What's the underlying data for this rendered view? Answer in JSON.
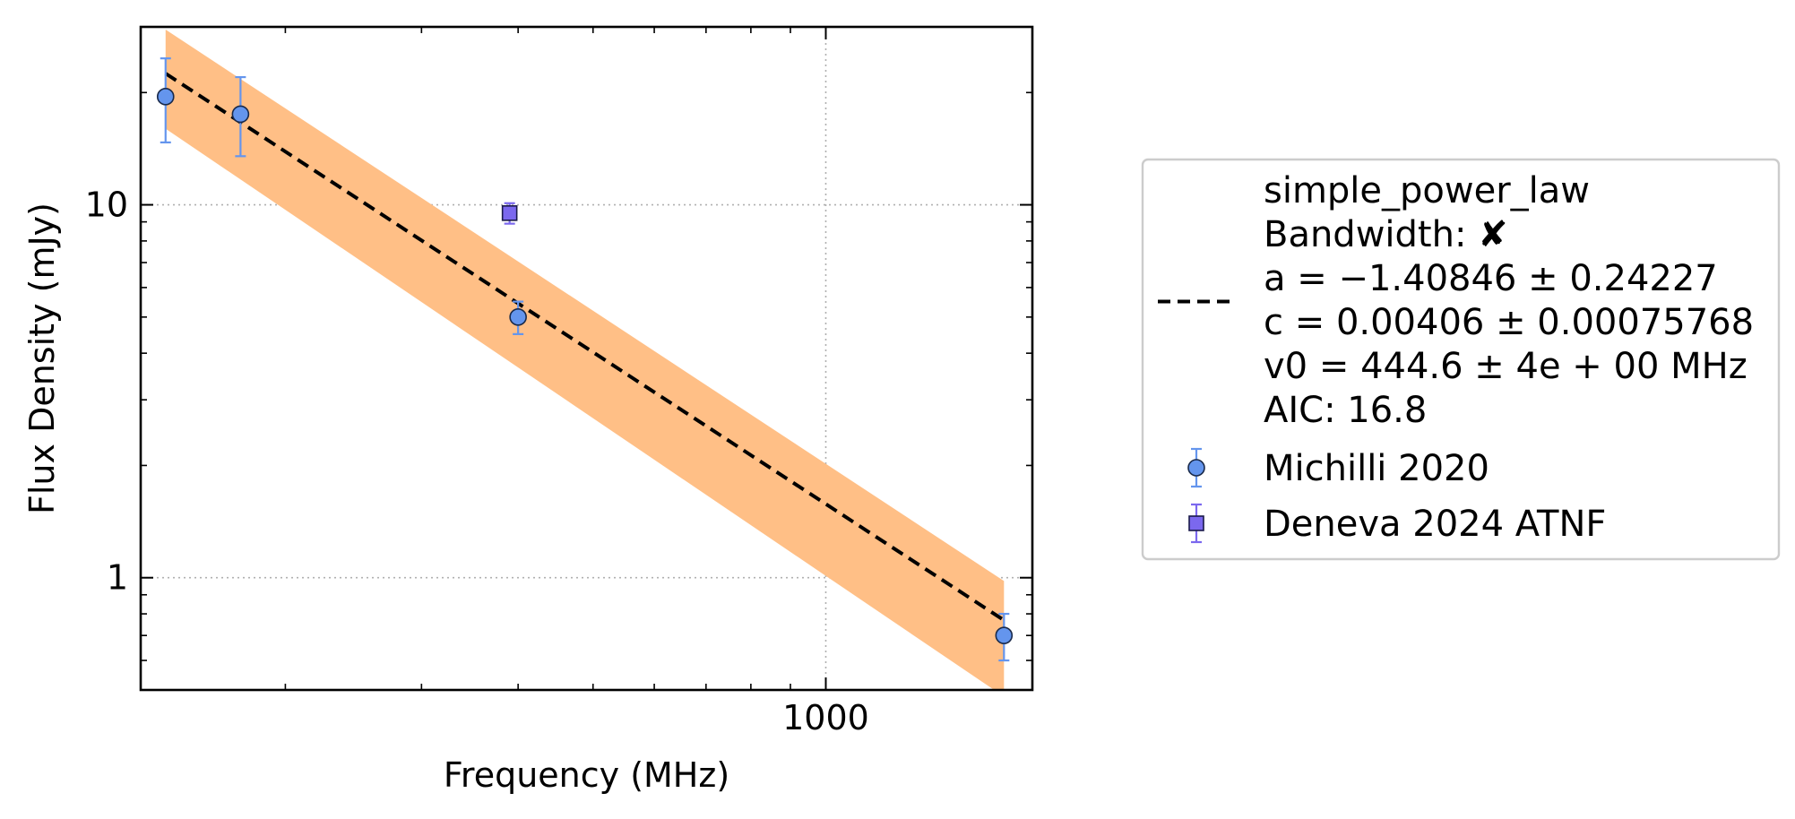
{
  "chart_data": {
    "type": "scatter",
    "xlabel": "Frequency (MHz)",
    "ylabel": "Flux Density (mJy)",
    "xscale": "log",
    "yscale": "log",
    "xlim": [
      130,
      1850
    ],
    "ylim": [
      0.5,
      30
    ],
    "grid": true,
    "legend_position": "outside-right",
    "x_ticks": [
      {
        "value": 1000,
        "label": "1000"
      }
    ],
    "y_ticks": [
      {
        "value": 1,
        "label": "1"
      },
      {
        "value": 10,
        "label": "10"
      }
    ],
    "fit": {
      "name": "simple_power_law",
      "lines": [
        "simple_power_law",
        "Bandwidth: ✘",
        "a = −1.40846 ± 0.24227",
        "c = 0.00406 ± 0.00075768",
        "v0 = 444.6 ± 4e + 00 MHz",
        "AIC: 16.8"
      ],
      "a": -1.40846,
      "c": 0.00406,
      "v0": 444.6,
      "x_range": [
        140,
        1700
      ],
      "band": [
        {
          "x": 140,
          "lower": 16.0,
          "upper": 29.5
        },
        {
          "x": 1700,
          "lower": 0.48,
          "upper": 0.98
        }
      ],
      "line_color": "#000000",
      "band_color": "#ffbf86"
    },
    "series": [
      {
        "name": "Michilli 2020",
        "marker": "circle",
        "color": "#6495ed",
        "edge_color": "#1a2a4a",
        "points": [
          {
            "x": 140,
            "y": 19.5,
            "err_low": 4.8,
            "err_high": 5.2
          },
          {
            "x": 175,
            "y": 17.5,
            "err_low": 4.0,
            "err_high": 4.5
          },
          {
            "x": 400,
            "y": 5.0,
            "err_low": 0.5,
            "err_high": 0.5
          },
          {
            "x": 1700,
            "y": 0.7,
            "err_low": 0.1,
            "err_high": 0.1
          }
        ]
      },
      {
        "name": "Deneva 2024 ATNF",
        "marker": "square",
        "color": "#7b68ee",
        "edge_color": "#1a1a4a",
        "points": [
          {
            "x": 390,
            "y": 9.5,
            "err_low": 0.6,
            "err_high": 0.6
          }
        ]
      }
    ]
  }
}
